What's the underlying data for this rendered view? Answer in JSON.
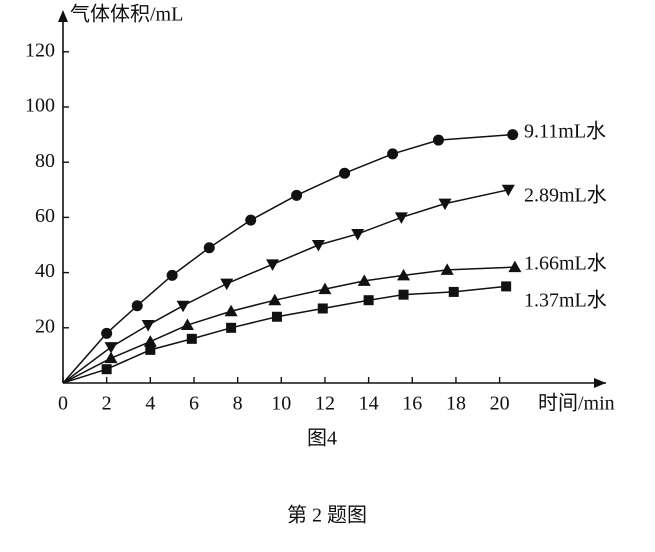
{
  "chart_data": {
    "type": "line",
    "ylabel": "气体体积/mL",
    "xlabel": "时间/min",
    "caption": "图4",
    "subcaption": "第 2 题图",
    "xlim": [
      0,
      25
    ],
    "ylim": [
      0,
      135
    ],
    "xticks": [
      0,
      2,
      4,
      6,
      8,
      10,
      12,
      14,
      16,
      18,
      20
    ],
    "yticks": [
      20,
      40,
      60,
      80,
      100,
      120
    ],
    "series": [
      {
        "name": "9.11mL水",
        "color": "#111111",
        "marker": "circle",
        "x": [
          0,
          2,
          3.4,
          5,
          6.7,
          8.6,
          10.7,
          12.9,
          15.1,
          17.2,
          20.6
        ],
        "values": [
          0,
          18,
          28,
          39,
          49,
          59,
          68,
          76,
          83,
          88,
          90
        ]
      },
      {
        "name": "2.89mL水",
        "color": "#111111",
        "marker": "triangle-down",
        "x": [
          0,
          2.2,
          3.9,
          5.5,
          7.5,
          9.6,
          11.7,
          13.5,
          15.5,
          17.5,
          20.4
        ],
        "values": [
          0,
          13,
          21,
          28,
          36,
          43,
          50,
          54,
          60,
          65,
          70
        ]
      },
      {
        "name": "1.66mL水",
        "color": "#111111",
        "marker": "triangle-up",
        "x": [
          0,
          2.2,
          4,
          5.7,
          7.7,
          9.7,
          12,
          13.8,
          15.6,
          17.6,
          20.7
        ],
        "values": [
          0,
          9,
          15,
          21,
          26,
          30,
          34,
          37,
          39,
          41,
          42
        ]
      },
      {
        "name": "1.37mL水",
        "color": "#111111",
        "marker": "square",
        "x": [
          0,
          2,
          4,
          5.9,
          7.7,
          9.8,
          11.9,
          14,
          15.6,
          17.9,
          20.3
        ],
        "values": [
          0,
          5,
          12,
          16,
          20,
          24,
          27,
          30,
          32,
          33,
          35
        ]
      }
    ]
  }
}
